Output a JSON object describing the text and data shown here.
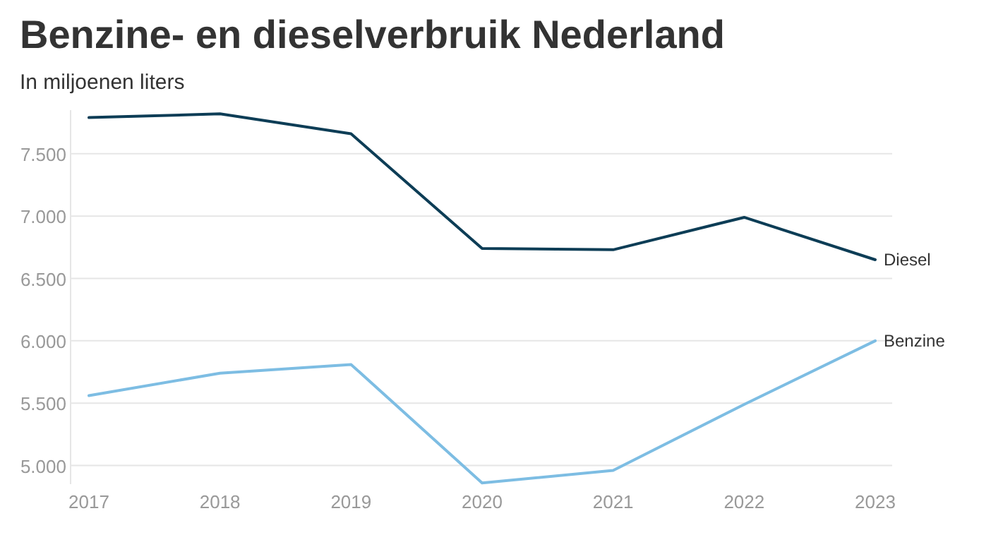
{
  "chart_data": {
    "type": "line",
    "title": "Benzine- en dieselverbruik Nederland",
    "subtitle": "In miljoenen liters",
    "categories": [
      "2017",
      "2018",
      "2019",
      "2020",
      "2021",
      "2022",
      "2023"
    ],
    "series": [
      {
        "name": "Diesel",
        "color": "#0d3d56",
        "values": [
          7790,
          7820,
          7660,
          6740,
          6730,
          6990,
          6650
        ]
      },
      {
        "name": "Benzine",
        "color": "#7dbde3",
        "values": [
          5560,
          5740,
          5810,
          4860,
          4960,
          5490,
          6000
        ]
      }
    ],
    "ylim": [
      4850,
      7850
    ],
    "yticks": [
      {
        "value": 5000,
        "label": "5.000"
      },
      {
        "value": 5500,
        "label": "5.500"
      },
      {
        "value": 6000,
        "label": "6.000"
      },
      {
        "value": 6500,
        "label": "6.500"
      },
      {
        "value": 7000,
        "label": "7.000"
      },
      {
        "value": 7500,
        "label": "7.500"
      }
    ],
    "grid": "y",
    "legend": false,
    "marker": "none",
    "line_style": "solid"
  }
}
